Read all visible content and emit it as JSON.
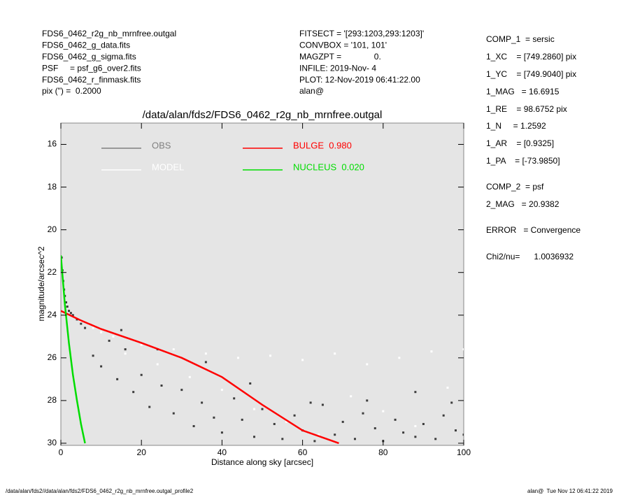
{
  "chart_data": {
    "type": "scatter",
    "title": "/data/alan/fds2/FDS6_0462_r2g_nb_mrnfree.outgal",
    "x_label": "Distance along sky [arcsec]",
    "y_label": "magnitude/arcsec^2",
    "xlim": [
      0,
      100
    ],
    "ylim": [
      30.1,
      15
    ],
    "xticks": [
      0,
      20,
      40,
      60,
      80,
      100
    ],
    "yticks": [
      16,
      18,
      20,
      22,
      24,
      26,
      28,
      30
    ],
    "series": [
      {
        "name": "OBS",
        "color": "#808080",
        "point_color": "#3c3c3c",
        "mode": "markers",
        "x": [
          0.2,
          0.4,
          0.6,
          0.8,
          1.0,
          1.3,
          1.6,
          2.0,
          2.5,
          3,
          4,
          5,
          6,
          8,
          10,
          12,
          14,
          16,
          18,
          20,
          22,
          25,
          28,
          30,
          33,
          35,
          38,
          40,
          43,
          45,
          48,
          50,
          53,
          55,
          58,
          60,
          63,
          65,
          68,
          70,
          73,
          75,
          78,
          80,
          83,
          85,
          88,
          90,
          93,
          95,
          98,
          100,
          15,
          24,
          36,
          47,
          62,
          76,
          88,
          97
        ],
        "values": [
          21.3,
          21.9,
          22.4,
          22.8,
          23.1,
          23.4,
          23.6,
          23.8,
          23.9,
          24.0,
          24.2,
          24.4,
          24.6,
          25.9,
          26.4,
          25.2,
          27.0,
          25.6,
          27.6,
          26.8,
          28.3,
          27.3,
          28.6,
          27.5,
          29.2,
          28.1,
          28.8,
          29.5,
          27.9,
          28.9,
          29.7,
          28.4,
          29.1,
          29.8,
          28.7,
          29.4,
          29.9,
          28.2,
          29.6,
          29.0,
          29.8,
          28.6,
          29.3,
          29.9,
          28.9,
          29.5,
          29.7,
          29.1,
          29.8,
          28.7,
          29.4,
          29.6,
          24.7,
          25.6,
          26.2,
          27.2,
          28.1,
          28.0,
          27.6,
          28.1
        ]
      },
      {
        "name": "MODEL",
        "color": "#ffffff",
        "point_color": "#ffffff",
        "mode": "markers",
        "x": [
          5,
          8,
          10,
          13,
          16,
          20,
          24,
          28,
          32,
          36,
          40,
          44,
          48,
          52,
          56,
          60,
          64,
          68,
          72,
          76,
          80,
          84,
          88,
          92,
          96,
          100
        ],
        "values": [
          24.3,
          24.6,
          24.8,
          25.0,
          25.8,
          25.4,
          26.3,
          25.6,
          26.9,
          25.8,
          27.5,
          26.0,
          28.4,
          25.9,
          29.0,
          26.1,
          29.6,
          25.8,
          27.8,
          26.3,
          28.5,
          26.0,
          29.2,
          25.7,
          27.4,
          25.6
        ]
      },
      {
        "name": "BULGE  0.980",
        "color": "#ff0000",
        "mode": "line",
        "x": [
          0,
          5,
          10,
          20,
          30,
          40,
          50,
          60,
          69
        ],
        "values": [
          23.8,
          24.25,
          24.65,
          25.3,
          26.0,
          26.9,
          28.2,
          29.4,
          30.0
        ]
      },
      {
        "name": "NUCLEUS  0.020",
        "color": "#00dd00",
        "mode": "line",
        "x": [
          0,
          1,
          2,
          3,
          4,
          5,
          6
        ],
        "values": [
          21.2,
          23.5,
          25.3,
          26.8,
          28.0,
          29.1,
          30.0
        ]
      }
    ],
    "header_left": [
      "FDS6_0462_r2g_nb_mrnfree.outgal",
      "FDS6_0462_g_data.fits",
      "FDS6_0462_g_sigma.fits",
      "PSF     = psf_g6_over2.fits",
      "FDS6_0462_r_finmask.fits",
      "pix (\") =  0.2000"
    ],
    "header_center": [
      "FITSECT = '[293:1203,293:1203]'",
      "CONVBOX = '101, 101'",
      "MAGZPT =              0.",
      "INFILE: 2019-Nov- 4",
      "PLOT: 12-Nov-2019 06:41:22.00",
      "alan@"
    ],
    "header_right": [
      "COMP_1  = sersic",
      "1_XC    = [749.2860] pix",
      "1_YC    = [749.9040] pix",
      "1_MAG   = 16.6915",
      "1_RE    = 98.6752 pix",
      "1_N     = 1.2592",
      "1_AR    = [0.9325]",
      "1_PA    = [-73.9850]",
      "COMP_2  = psf",
      "2_MAG   = 20.9382",
      "ERROR   = Convergence",
      "Chi2/nu=      1.0036932"
    ],
    "footer_left": "/data/alan/fds2//data/alan/fds2/FDS6_0462_r2g_nb_mrnfree.outgal_profile2",
    "footer_right": "alan@  Tue Nov 12 06:41:22 2019"
  }
}
